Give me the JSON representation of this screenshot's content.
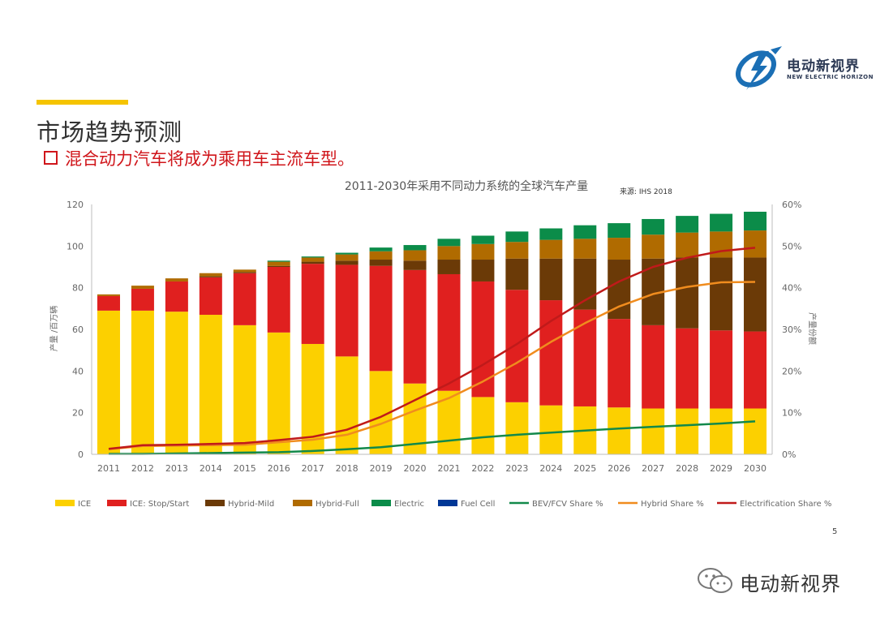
{
  "header": {
    "title": "市场趋势预测",
    "bullet": "混合动力汽车将成为乘用车主流车型。"
  },
  "logo": {
    "cn": "电动新视界",
    "en": "NEW ELECTRIC HORIZON"
  },
  "page_number": "5",
  "watermark": "电动新视界",
  "colors": {
    "ICE": "#fcd000",
    "ICE: Stop/Start": "#e0201f",
    "Hybrid-Mild": "#6b3a07",
    "Hybrid-Full": "#b06b00",
    "Electric": "#0b8c49",
    "Fuel Cell": "#003796",
    "BEV/FCV Share %": "#12894a",
    "Hybrid Share %": "#f08c1e",
    "Electrification Share %": "#c01a1a"
  },
  "chart_data": {
    "type": "bar",
    "title": "2011-2030年采用不同动力系统的全球汽车产量",
    "source": "来源:  IHS 2018",
    "ylabel": "产量 /百万辆",
    "y2label": "产量份额",
    "ylim": [
      0,
      120
    ],
    "y2lim": [
      0,
      60
    ],
    "yticks": [
      "0",
      "20",
      "40",
      "60",
      "80",
      "100",
      "120"
    ],
    "y2ticks": [
      "0%",
      "10%",
      "20%",
      "30%",
      "40%",
      "50%",
      "60%"
    ],
    "categories": [
      "2011",
      "2012",
      "2013",
      "2014",
      "2015",
      "2016",
      "2017",
      "2018",
      "2019",
      "2020",
      "2021",
      "2022",
      "2023",
      "2024",
      "2025",
      "2026",
      "2027",
      "2028",
      "2029",
      "2030"
    ],
    "series": [
      {
        "name": "ICE",
        "kind": "bar",
        "values": [
          69,
          69,
          68.5,
          67,
          62,
          58.5,
          53,
          47,
          40,
          34,
          30.5,
          27.5,
          25,
          23.5,
          23,
          22.5,
          22,
          22,
          22,
          22
        ]
      },
      {
        "name": "ICE: Stop/Start",
        "kind": "bar",
        "values": [
          7,
          10.5,
          14.5,
          18,
          25,
          31.5,
          38.5,
          44,
          50.5,
          54.5,
          56,
          55.5,
          54,
          50.5,
          46.5,
          42.5,
          40,
          38.5,
          37.5,
          37
        ]
      },
      {
        "name": "Hybrid-Mild",
        "kind": "bar",
        "values": [
          0,
          0,
          0,
          0.5,
          0.5,
          0.5,
          1,
          2,
          3,
          4.5,
          7,
          10.5,
          15,
          20,
          24.5,
          28.5,
          32,
          34,
          35,
          35.5
        ]
      },
      {
        "name": "Hybrid-Full",
        "kind": "bar",
        "values": [
          0.8,
          1.5,
          1.5,
          1.5,
          1.2,
          2,
          2,
          3,
          4,
          5,
          6.5,
          7.5,
          8,
          9,
          9.5,
          10.5,
          11.5,
          12,
          12.5,
          13
        ]
      },
      {
        "name": "Electric",
        "kind": "bar",
        "values": [
          0,
          0,
          0,
          0,
          0,
          0.5,
          0.5,
          0.8,
          1.8,
          2.5,
          3.5,
          4,
          5,
          5.5,
          6.5,
          7,
          7.5,
          8,
          8.5,
          9
        ]
      },
      {
        "name": "Fuel Cell",
        "kind": "bar",
        "values": [
          0,
          0,
          0,
          0,
          0,
          0,
          0,
          0,
          0,
          0,
          0,
          0,
          0,
          0,
          0,
          0,
          0,
          0,
          0,
          0
        ]
      },
      {
        "name": "BEV/FCV Share %",
        "kind": "line",
        "values": [
          0.1,
          0.1,
          0.2,
          0.3,
          0.4,
          0.5,
          0.8,
          1.2,
          1.7,
          2.5,
          3.3,
          4.1,
          4.7,
          5.2,
          5.7,
          6.2,
          6.6,
          7,
          7.4,
          7.9
        ]
      },
      {
        "name": "Hybrid Share %",
        "kind": "line",
        "values": [
          1.2,
          2,
          2.1,
          2.2,
          2.3,
          2.9,
          3.5,
          4.7,
          7.3,
          10.5,
          13.5,
          17.5,
          22,
          27,
          31.5,
          35.5,
          38.5,
          40.2,
          41.3,
          41.4
        ]
      },
      {
        "name": "Electrification Share %",
        "kind": "line",
        "values": [
          1.3,
          2.2,
          2.3,
          2.5,
          2.7,
          3.4,
          4.2,
          5.9,
          9,
          13,
          17,
          21.5,
          26.5,
          32,
          37,
          41.5,
          45,
          47.2,
          48.8,
          49.6
        ]
      }
    ],
    "legend_position": "bottom",
    "grid": false
  }
}
